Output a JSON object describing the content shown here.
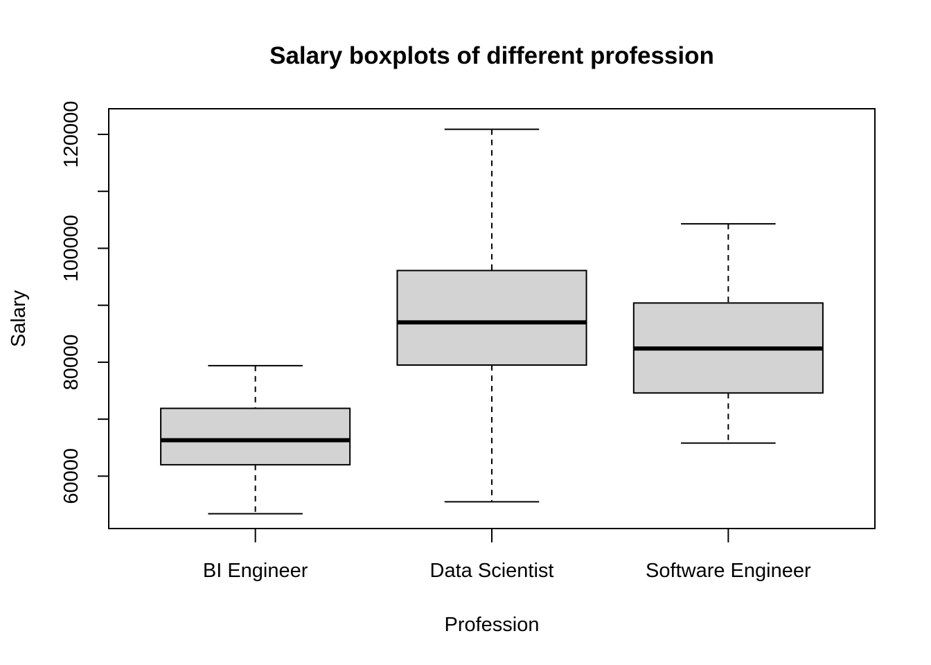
{
  "chart_data": {
    "type": "boxplot",
    "title": "Salary boxplots of different profession",
    "xlabel": "Profession",
    "ylabel": "Salary",
    "ylim": [
      50800,
      124500
    ],
    "yticks": [
      60000,
      70000,
      80000,
      90000,
      100000,
      110000,
      120000
    ],
    "ytick_labels": [
      "60000",
      "",
      "80000",
      "",
      "100000",
      "",
      "120000"
    ],
    "categories": [
      "BI Engineer",
      "Data Scientist",
      "Software Engineer"
    ],
    "boxes": [
      {
        "name": "BI Engineer",
        "min": 53400,
        "q1": 62000,
        "median": 66300,
        "q3": 71900,
        "max": 79400
      },
      {
        "name": "Data Scientist",
        "min": 55500,
        "q1": 79500,
        "median": 87000,
        "q3": 96100,
        "max": 120900
      },
      {
        "name": "Software Engineer",
        "min": 65800,
        "q1": 74600,
        "median": 82400,
        "q3": 90400,
        "max": 104300
      }
    ],
    "box_fill": "#d3d3d3",
    "grid": false,
    "legend": "none"
  }
}
